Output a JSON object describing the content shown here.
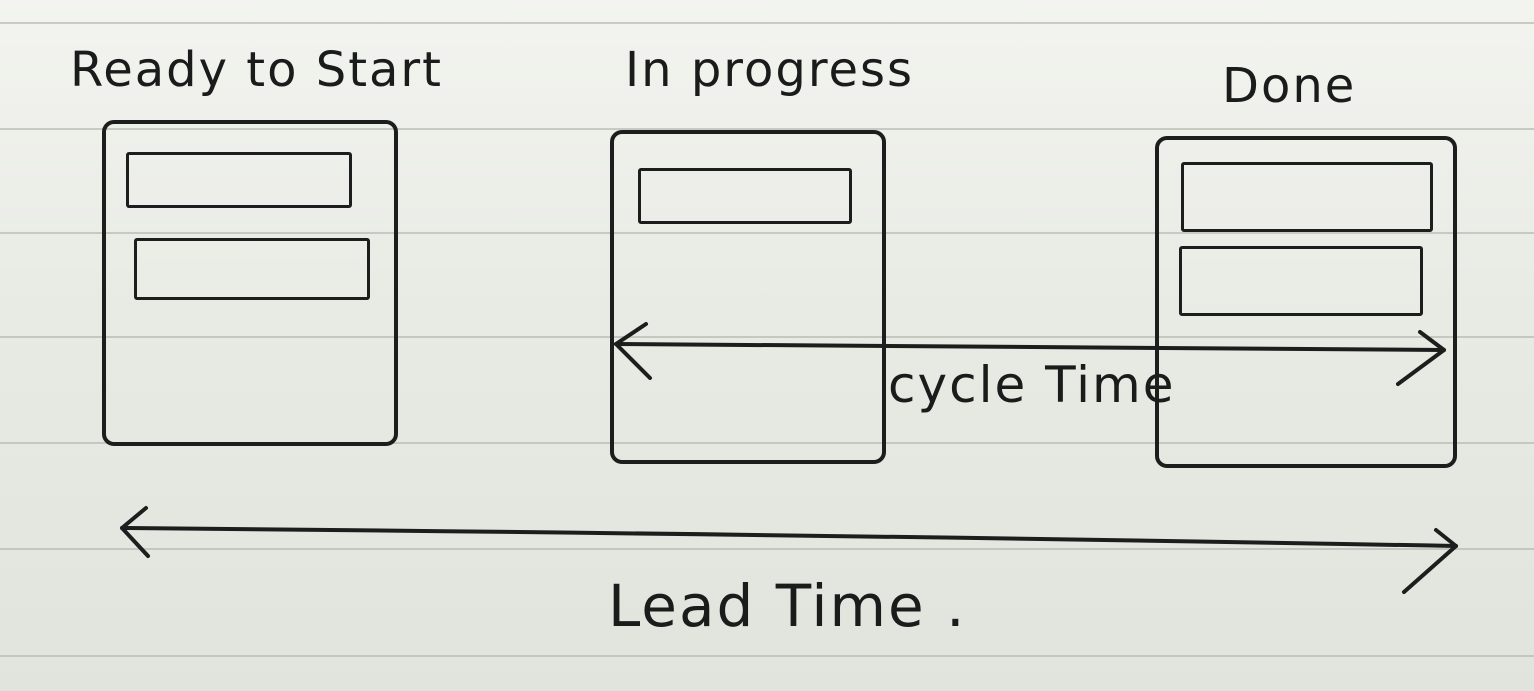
{
  "columns": [
    {
      "title": "Ready to Start",
      "cards": 2
    },
    {
      "title": "In progress",
      "cards": 1
    },
    {
      "title": "Done",
      "cards": 2
    }
  ],
  "cycle_time_label": "cycle Time",
  "lead_time_label": "Lead Time .",
  "colors": {
    "ink": "#1c1e1d",
    "paper": "#eceee8",
    "rule": "#b9bcb6"
  }
}
